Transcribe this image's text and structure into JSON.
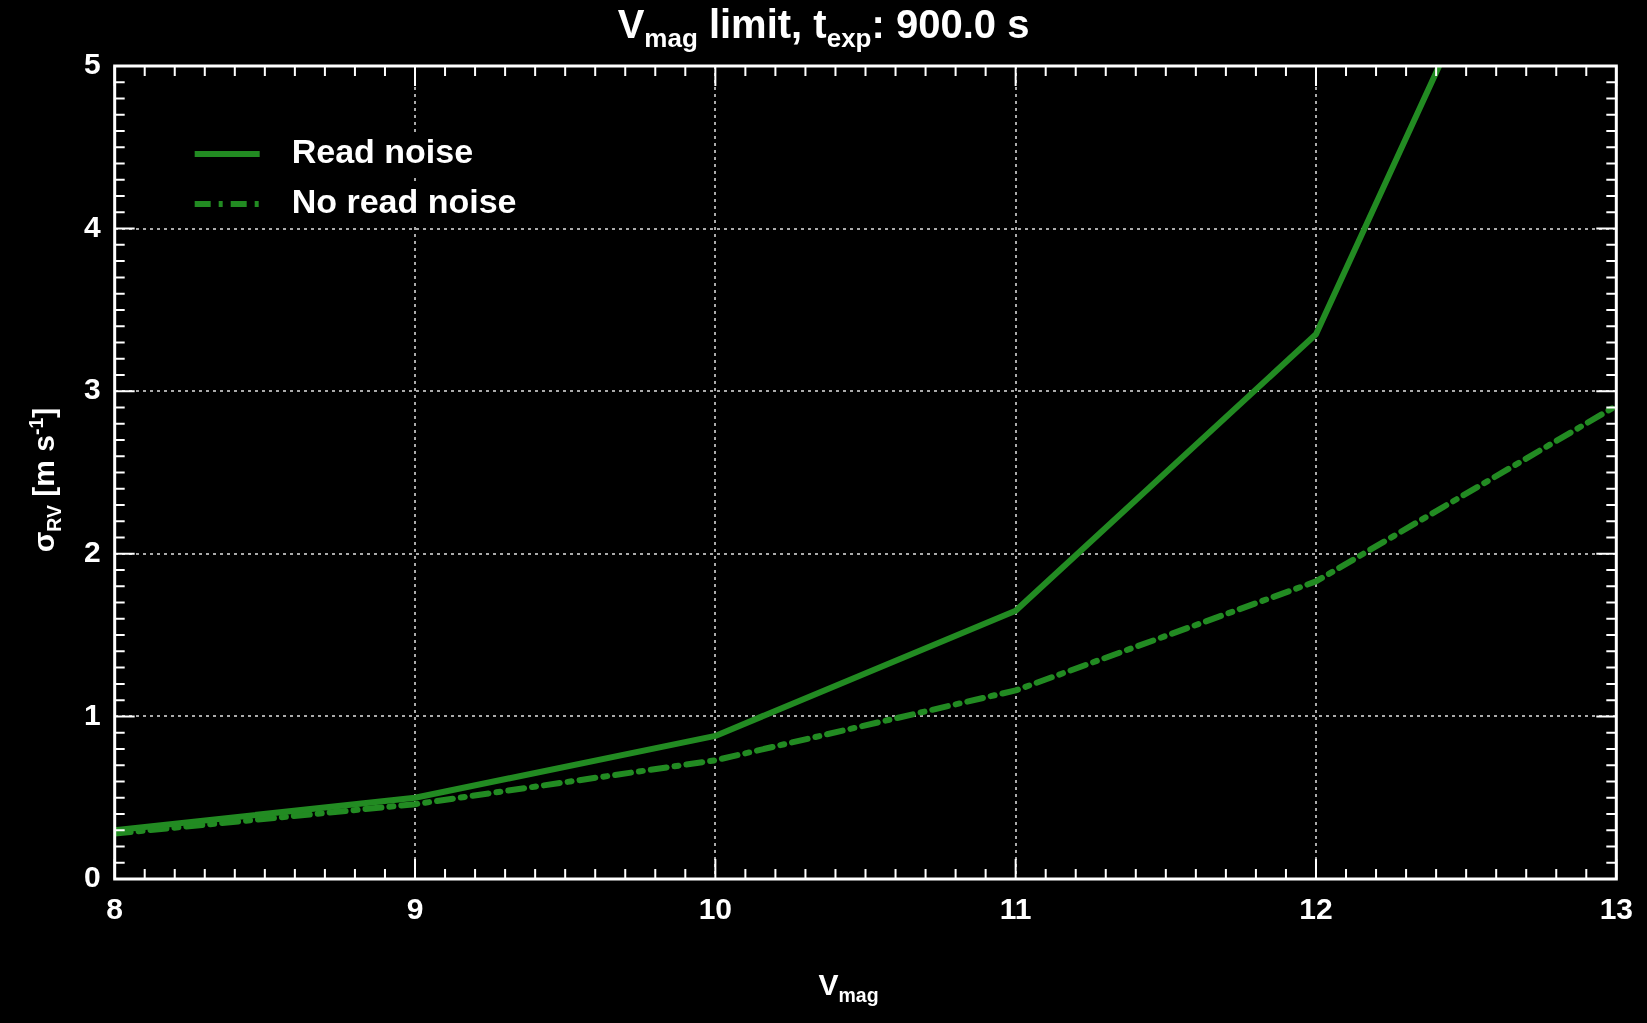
{
  "chart_data": {
    "type": "line",
    "title": "V$_{mag}$ limit, t$_{exp}$: 900.0 s",
    "xlabel": "V$_{mag}$",
    "ylabel": "σ$_{RV}$ [m s$^{-1}$]",
    "xlim": [
      8,
      13
    ],
    "ylim": [
      0,
      5
    ],
    "xticks": [
      8,
      {
        "value": 8.1,
        "label": null
      },
      {
        "value": 8.2,
        "label": null
      },
      {
        "value": 8.3,
        "label": null
      },
      {
        "value": 8.4,
        "label": null
      },
      {
        "value": 8.5,
        "label": null
      },
      {
        "value": 8.6,
        "label": null
      },
      {
        "value": 8.7,
        "label": null
      },
      {
        "value": 8.8,
        "label": null
      },
      {
        "value": 8.9,
        "label": null
      },
      9,
      {
        "value": 9.1,
        "label": null
      },
      {
        "value": 9.2,
        "label": null
      },
      {
        "value": 9.3,
        "label": null
      },
      {
        "value": 9.4,
        "label": null
      },
      {
        "value": 9.5,
        "label": null
      },
      {
        "value": 9.6,
        "label": null
      },
      {
        "value": 9.7,
        "label": null
      },
      {
        "value": 9.8,
        "label": null
      },
      {
        "value": 9.9,
        "label": null
      },
      10,
      {
        "value": 10.1,
        "label": null
      },
      {
        "value": 10.2,
        "label": null
      },
      {
        "value": 10.3,
        "label": null
      },
      {
        "value": 10.4,
        "label": null
      },
      {
        "value": 10.5,
        "label": null
      },
      {
        "value": 10.6,
        "label": null
      },
      {
        "value": 10.7,
        "label": null
      },
      {
        "value": 10.8,
        "label": null
      },
      {
        "value": 10.9,
        "label": null
      },
      11,
      {
        "value": 11.1,
        "label": null
      },
      {
        "value": 11.2,
        "label": null
      },
      {
        "value": 11.3,
        "label": null
      },
      {
        "value": 11.4,
        "label": null
      },
      {
        "value": 11.5,
        "label": null
      },
      {
        "value": 11.6,
        "label": null
      },
      {
        "value": 11.7,
        "label": null
      },
      {
        "value": 11.8,
        "label": null
      },
      {
        "value": 11.9,
        "label": null
      },
      12,
      {
        "value": 12.1,
        "label": null
      },
      {
        "value": 12.2,
        "label": null
      },
      {
        "value": 12.3,
        "label": null
      },
      {
        "value": 12.4,
        "label": null
      },
      {
        "value": 12.5,
        "label": null
      },
      {
        "value": 12.6,
        "label": null
      },
      {
        "value": 12.7,
        "label": null
      },
      {
        "value": 12.8,
        "label": null
      },
      {
        "value": 12.9,
        "label": null
      },
      13
    ],
    "yticks": [
      0,
      {
        "value": 0.1,
        "label": null
      },
      {
        "value": 0.2,
        "label": null
      },
      {
        "value": 0.3,
        "label": null
      },
      {
        "value": 0.4,
        "label": null
      },
      {
        "value": 0.5,
        "label": null
      },
      {
        "value": 0.6,
        "label": null
      },
      {
        "value": 0.7,
        "label": null
      },
      {
        "value": 0.8,
        "label": null
      },
      {
        "value": 0.9,
        "label": null
      },
      1,
      {
        "value": 1.1,
        "label": null
      },
      {
        "value": 1.2,
        "label": null
      },
      {
        "value": 1.3,
        "label": null
      },
      {
        "value": 1.4,
        "label": null
      },
      {
        "value": 1.5,
        "label": null
      },
      {
        "value": 1.6,
        "label": null
      },
      {
        "value": 1.7,
        "label": null
      },
      {
        "value": 1.8,
        "label": null
      },
      {
        "value": 1.9,
        "label": null
      },
      2,
      {
        "value": 2.1,
        "label": null
      },
      {
        "value": 2.2,
        "label": null
      },
      {
        "value": 2.3,
        "label": null
      },
      {
        "value": 2.4,
        "label": null
      },
      {
        "value": 2.5,
        "label": null
      },
      {
        "value": 2.6,
        "label": null
      },
      {
        "value": 2.7,
        "label": null
      },
      {
        "value": 2.8,
        "label": null
      },
      {
        "value": 2.9,
        "label": null
      },
      3,
      {
        "value": 3.1,
        "label": null
      },
      {
        "value": 3.2,
        "label": null
      },
      {
        "value": 3.3,
        "label": null
      },
      {
        "value": 3.4,
        "label": null
      },
      {
        "value": 3.5,
        "label": null
      },
      {
        "value": 3.6,
        "label": null
      },
      {
        "value": 3.7,
        "label": null
      },
      {
        "value": 3.8,
        "label": null
      },
      {
        "value": 3.9,
        "label": null
      },
      4,
      {
        "value": 4.1,
        "label": null
      },
      {
        "value": 4.2,
        "label": null
      },
      {
        "value": 4.3,
        "label": null
      },
      {
        "value": 4.4,
        "label": null
      },
      {
        "value": 4.5,
        "label": null
      },
      {
        "value": 4.6,
        "label": null
      },
      {
        "value": 4.7,
        "label": null
      },
      {
        "value": 4.8,
        "label": null
      },
      {
        "value": 4.9,
        "label": null
      },
      5
    ],
    "grid": true,
    "legend": "top left",
    "marker": "none",
    "series": [
      {
        "name": "Read noise",
        "color": "#228b22",
        "line_style": "solid",
        "x": [
          8,
          9,
          10,
          11,
          12,
          12.41
        ],
        "values": [
          0.3,
          0.5,
          0.88,
          1.65,
          3.35,
          5.0
        ]
      },
      {
        "name": "No read noise",
        "color": "#228b22",
        "line_style": "dashdot",
        "x": [
          8,
          9,
          10,
          11,
          12,
          13
        ],
        "values": [
          0.28,
          0.46,
          0.73,
          1.16,
          1.83,
          2.91
        ]
      }
    ]
  }
}
